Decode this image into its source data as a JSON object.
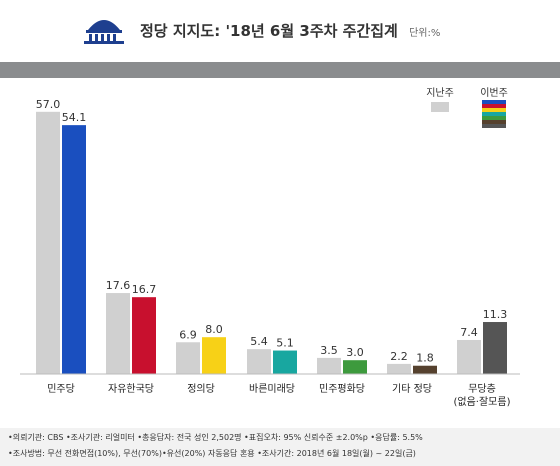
{
  "header": {
    "title": "정당 지지도: '18년 6월 3주차 주간집계",
    "unit": "단위:%"
  },
  "legend": {
    "previous": "지난주",
    "current": "이번주"
  },
  "colors": {
    "previous": "#d0d0d0",
    "band": "#8a8c8e",
    "current_parties": [
      "#1a4fbf",
      "#c8102e",
      "#f7d117",
      "#18a7a0",
      "#3d9a3d",
      "#55412e",
      "#555555"
    ]
  },
  "chart_data": {
    "type": "bar",
    "categories": [
      "민주당",
      "자유한국당",
      "정의당",
      "바른미래당",
      "민주평화당",
      "기타 정당",
      "무당층"
    ],
    "category_sublabels": [
      "",
      "",
      "",
      "",
      "",
      "",
      "(없음·잘모름)"
    ],
    "series": [
      {
        "name": "지난주",
        "values": [
          57.0,
          17.6,
          6.9,
          5.4,
          3.5,
          2.2,
          7.4
        ]
      },
      {
        "name": "이번주",
        "values": [
          54.1,
          16.7,
          8.0,
          5.1,
          3.0,
          1.8,
          11.3
        ]
      }
    ],
    "value_labels": {
      "previous": [
        "57.0",
        "17.6",
        "6.9",
        "5.4",
        "3.5",
        "2.2",
        "7.4"
      ],
      "current": [
        "54.1",
        "16.7",
        "8.0",
        "5.1",
        "3.0",
        "1.8",
        "11.3"
      ]
    },
    "ylim": [
      0,
      60
    ],
    "legend_position": "top-right"
  },
  "footer": {
    "line1": "•의뢰기관: CBS •조사기관: 리얼미터 •총응답자: 전국 성인 2,502명 •표집오차: 95% 신뢰수준 ±2.0%p •응답률: 5.5%",
    "line2": "•조사방법: 무선 전화면접(10%), 무선(70%)•유선(20%) 자동응답 혼용 •조사기간: 2018년 6월 18일(월) ~ 22일(금)"
  }
}
